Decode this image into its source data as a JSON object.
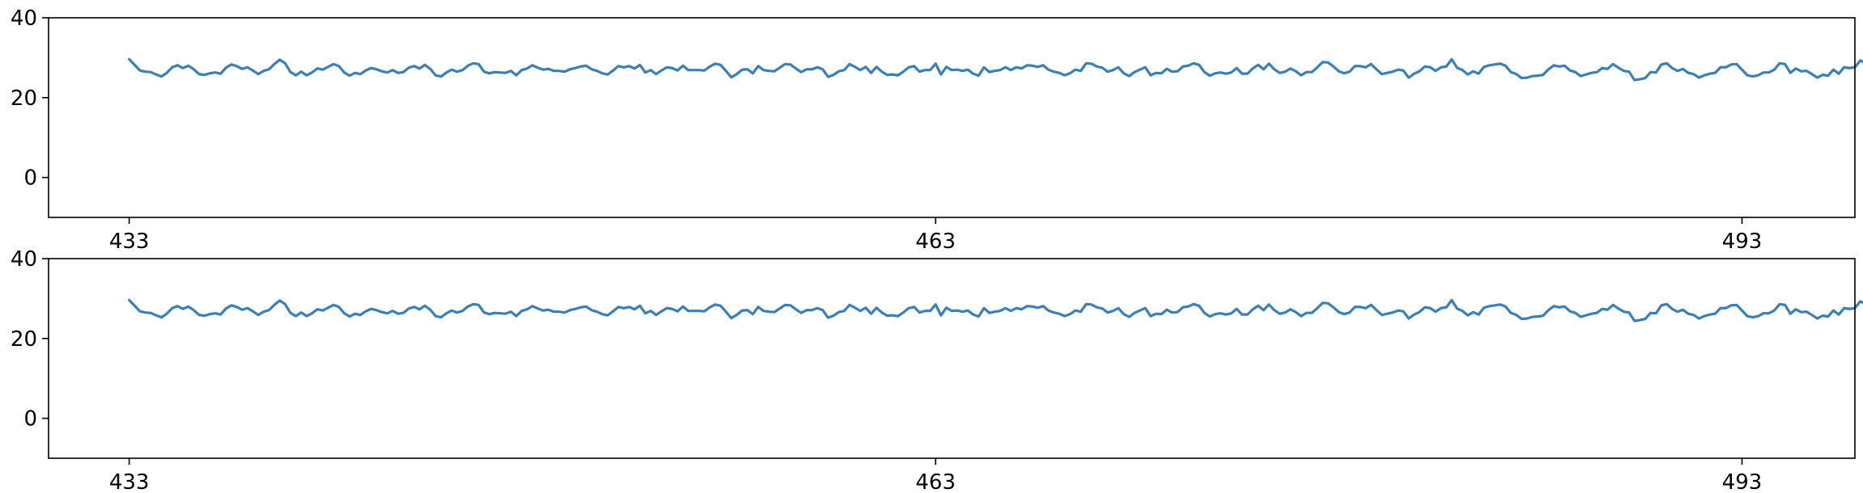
{
  "chart_data": [
    {
      "type": "line",
      "title": "",
      "xlabel": "",
      "ylabel": "",
      "xlim": [
        430,
        497.2
      ],
      "ylim": [
        -10,
        40
      ],
      "xticks": [
        433,
        463,
        493
      ],
      "xtick_labels": [
        "433",
        "463",
        "493"
      ],
      "yticks": [
        0,
        20,
        40
      ],
      "ytick_labels": [
        "0",
        "20",
        "40"
      ],
      "grid": false,
      "color": "#3a7fb5",
      "x_start": 433,
      "x_step": 0.2,
      "values": [
        29.6,
        28.2,
        26.8,
        26.5,
        26.4,
        25.8,
        25.3,
        26.2,
        27.6,
        28.1,
        27.4,
        28.0,
        27.1,
        25.9,
        25.7,
        26.1,
        26.3,
        26.0,
        27.5,
        28.3,
        27.9,
        27.2,
        27.6,
        26.8,
        25.9,
        26.7,
        27.1,
        28.4,
        29.5,
        28.6,
        26.4,
        25.6,
        26.5,
        25.6,
        26.3,
        27.3,
        27.0,
        27.7,
        28.4,
        27.9,
        26.3,
        25.5,
        26.2,
        25.9,
        26.8,
        27.4,
        27.1,
        26.6,
        26.3,
        26.9,
        26.2,
        26.4,
        27.5,
        27.9,
        27.3,
        28.2,
        27.2,
        25.6,
        25.3,
        26.3,
        27.0,
        26.5,
        26.9,
        28.0,
        28.6,
        28.4,
        26.5,
        26.1,
        26.4,
        26.3,
        26.2,
        26.7,
        25.6,
        26.9,
        27.3,
        28.1,
        27.5,
        27.0,
        27.2,
        26.7,
        26.7,
        26.5,
        27.1,
        27.4,
        27.8,
        28.0,
        27.1,
        26.7,
        26.1,
        25.8,
        26.8,
        27.9,
        27.6,
        27.9,
        27.3,
        28.2,
        26.3,
        26.9,
        25.9,
        26.8,
        27.6,
        27.4,
        26.8,
        28.0,
        26.9,
        26.9,
        26.9,
        26.8,
        27.8,
        28.5,
        28.2,
        26.7,
        25.1,
        25.9,
        27.0,
        27.1,
        26.1,
        27.9,
        26.9,
        26.7,
        26.6,
        27.5,
        28.4,
        28.3,
        27.3,
        26.4,
        27.1,
        27.1,
        27.6,
        27.1,
        25.2,
        25.7,
        26.6,
        26.9,
        28.4,
        27.7,
        26.9,
        27.7,
        26.2,
        27.7,
        26.5,
        25.7,
        25.8,
        25.6,
        26.5,
        27.6,
        27.9,
        26.5,
        26.9,
        26.9,
        28.5,
        25.8,
        27.7,
        26.9,
        27.0,
        26.7,
        27.0,
        26.0,
        25.5,
        27.6,
        26.4,
        26.7,
        26.9,
        27.6,
        26.9,
        27.6,
        27.3,
        28.1,
        28.0,
        27.7,
        28.1,
        27.0,
        26.5,
        26.2,
        25.6,
        26.1,
        27.0,
        26.7,
        28.6,
        28.5,
        27.8,
        27.5,
        26.5,
        26.9,
        27.6,
        26.1,
        25.4,
        26.4,
        27.0,
        27.6,
        25.6,
        26.2,
        26.1,
        27.2,
        26.5,
        26.6,
        27.8,
        28.0,
        28.6,
        28.2,
        26.4,
        25.5,
        26.1,
        26.3,
        26.0,
        26.3,
        27.4,
        26.0,
        26.0,
        27.3,
        28.2,
        27.1,
        28.5,
        27.1,
        26.2,
        26.5,
        27.3,
        26.6,
        25.6,
        26.4,
        26.4,
        27.6,
        28.9,
        28.8,
        27.8,
        26.6,
        26.1,
        26.5,
        27.9,
        27.9,
        27.6,
        28.4,
        27.1,
        25.9,
        26.2,
        26.5,
        27.0,
        26.8,
        25.0,
        26.0,
        26.6,
        27.8,
        27.6,
        26.7,
        27.6,
        27.8,
        29.6,
        27.5,
        26.9,
        25.8,
        26.6,
        26.0,
        27.7,
        28.1,
        28.3,
        28.5,
        28.0,
        26.4,
        25.9,
        24.9,
        25.0,
        25.4,
        25.5,
        25.7,
        27.1,
        28.1,
        27.8,
        28.0,
        26.8,
        26.4,
        25.4,
        25.8,
        26.2,
        26.4,
        27.4,
        27.2,
        28.4,
        27.5,
        26.7,
        26.5,
        24.4,
        24.6,
        24.9,
        26.4,
        26.3,
        28.3,
        28.6,
        27.4,
        26.7,
        27.2,
        26.2,
        25.9,
        25.0,
        25.6,
        26.0,
        26.2,
        27.6,
        27.6,
        28.3,
        28.4,
        27.0,
        25.6,
        25.3,
        25.6,
        26.3,
        26.3,
        27.0,
        28.6,
        28.4,
        26.2,
        27.3,
        26.6,
        26.7,
        25.9,
        25.0,
        25.7,
        25.5,
        27.0,
        26.0,
        27.6,
        27.4,
        27.6,
        29.3,
        28.6,
        27.1,
        26.7,
        26.0,
        25.6,
        27.2,
        26.9,
        27.4,
        27.5,
        27.9,
        28.1,
        26.7,
        25.4,
        26.6,
        27.0,
        25.0,
        25.6,
        26.7,
        27.0,
        27.6,
        28.0,
        26.3,
        28.3,
        27.1,
        28.3,
        27.8,
        27.5,
        27.0,
        26.0,
        26.0,
        25.8,
        25.1,
        26.6,
        27.1,
        28.7,
        28.5,
        28.1,
        26.5,
        26.1,
        26.8,
        25.8,
        25.4,
        25.7,
        25.9,
        27.1,
        27.5,
        28.4,
        28.4,
        27.5,
        26.6,
        26.3,
        26.9,
        27.0,
        25.8,
        26.1,
        26.7,
        27.9,
        27.9,
        27.3,
        26.2,
        26.8,
        26.4,
        27.0,
        26.5,
        26.1,
        25.1,
        26.0,
        26.4,
        28.0,
        28.7,
        27.3,
        28.3,
        26.6,
        26.1,
        26.4,
        25.0,
        25.2,
        25.7,
        27.0,
        27.3,
        27.6,
        27.7,
        28.2,
        26.9,
        25.1,
        27.4,
        28.1,
        26.6,
        27.9,
        26.0,
        25.6,
        26.5,
        26.6,
        28.0,
        27.2,
        27.2,
        26.6,
        27.1,
        24.8,
        24.9,
        25.2,
        27.3,
        27.8,
        28.0,
        28.9,
        27.2,
        26.2,
        25.7,
        26.0,
        26.0,
        24.2,
        25.0,
        25.9,
        26.6,
        28.4,
        27.4,
        27.4,
        27.9,
        25.8,
        25.5,
        25.7,
        26.4,
        26.7,
        28.7
      ]
    },
    {
      "type": "line",
      "title": "",
      "xlabel": "",
      "ylabel": "",
      "xlim": [
        430,
        497.2
      ],
      "ylim": [
        -10,
        40
      ],
      "xticks": [
        433,
        463,
        493
      ],
      "xtick_labels": [
        "433",
        "463",
        "493"
      ],
      "yticks": [
        0,
        20,
        40
      ],
      "ytick_labels": [
        "0",
        "20",
        "40"
      ],
      "grid": false,
      "color": "#3a7fb5",
      "x_start": 433,
      "x_step": 0.2,
      "values": [
        29.6,
        28.2,
        26.8,
        26.5,
        26.4,
        25.8,
        25.3,
        26.2,
        27.6,
        28.1,
        27.4,
        28.0,
        27.1,
        25.9,
        25.7,
        26.1,
        26.3,
        26.0,
        27.5,
        28.3,
        27.9,
        27.2,
        27.6,
        26.8,
        25.9,
        26.7,
        27.1,
        28.4,
        29.5,
        28.6,
        26.4,
        25.6,
        26.5,
        25.6,
        26.3,
        27.3,
        27.0,
        27.7,
        28.4,
        27.9,
        26.3,
        25.5,
        26.2,
        25.9,
        26.8,
        27.4,
        27.1,
        26.6,
        26.3,
        26.9,
        26.2,
        26.4,
        27.5,
        27.9,
        27.3,
        28.2,
        27.2,
        25.6,
        25.3,
        26.3,
        27.0,
        26.5,
        26.9,
        28.0,
        28.6,
        28.4,
        26.5,
        26.1,
        26.4,
        26.3,
        26.2,
        26.7,
        25.6,
        26.9,
        27.3,
        28.1,
        27.5,
        27.0,
        27.2,
        26.7,
        26.7,
        26.5,
        27.1,
        27.4,
        27.8,
        28.0,
        27.1,
        26.7,
        26.1,
        25.8,
        26.8,
        27.9,
        27.6,
        27.9,
        27.3,
        28.2,
        26.3,
        26.9,
        25.9,
        26.8,
        27.6,
        27.4,
        26.8,
        28.0,
        26.9,
        26.9,
        26.9,
        26.8,
        27.8,
        28.5,
        28.2,
        26.7,
        25.1,
        25.9,
        27.0,
        27.1,
        26.1,
        27.9,
        26.9,
        26.7,
        26.6,
        27.5,
        28.4,
        28.3,
        27.3,
        26.4,
        27.1,
        27.1,
        27.6,
        27.1,
        25.2,
        25.7,
        26.6,
        26.9,
        28.4,
        27.7,
        26.9,
        27.7,
        26.2,
        27.7,
        26.5,
        25.7,
        25.8,
        25.6,
        26.5,
        27.6,
        27.9,
        26.5,
        26.9,
        26.9,
        28.5,
        25.8,
        27.7,
        26.9,
        27.0,
        26.7,
        27.0,
        26.0,
        25.5,
        27.6,
        26.4,
        26.7,
        26.9,
        27.6,
        26.9,
        27.6,
        27.3,
        28.1,
        28.0,
        27.7,
        28.1,
        27.0,
        26.5,
        26.2,
        25.6,
        26.1,
        27.0,
        26.7,
        28.6,
        28.5,
        27.8,
        27.5,
        26.5,
        26.9,
        27.6,
        26.1,
        25.4,
        26.4,
        27.0,
        27.6,
        25.6,
        26.2,
        26.1,
        27.2,
        26.5,
        26.6,
        27.8,
        28.0,
        28.6,
        28.2,
        26.4,
        25.5,
        26.1,
        26.3,
        26.0,
        26.3,
        27.4,
        26.0,
        26.0,
        27.3,
        28.2,
        27.1,
        28.5,
        27.1,
        26.2,
        26.5,
        27.3,
        26.6,
        25.6,
        26.4,
        26.4,
        27.6,
        28.9,
        28.8,
        27.8,
        26.6,
        26.1,
        26.5,
        27.9,
        27.9,
        27.6,
        28.4,
        27.1,
        25.9,
        26.2,
        26.5,
        27.0,
        26.8,
        25.0,
        26.0,
        26.6,
        27.8,
        27.6,
        26.7,
        27.6,
        27.8,
        29.6,
        27.5,
        26.9,
        25.8,
        26.6,
        26.0,
        27.7,
        28.1,
        28.3,
        28.5,
        28.0,
        26.4,
        25.9,
        24.9,
        25.0,
        25.4,
        25.5,
        25.7,
        27.1,
        28.1,
        27.8,
        28.0,
        26.8,
        26.4,
        25.4,
        25.8,
        26.2,
        26.4,
        27.4,
        27.2,
        28.4,
        27.5,
        26.7,
        26.5,
        24.4,
        24.6,
        24.9,
        26.4,
        26.3,
        28.3,
        28.6,
        27.4,
        26.7,
        27.2,
        26.2,
        25.9,
        25.0,
        25.6,
        26.0,
        26.2,
        27.6,
        27.6,
        28.3,
        28.4,
        27.0,
        25.6,
        25.3,
        25.6,
        26.3,
        26.3,
        27.0,
        28.6,
        28.4,
        26.2,
        27.3,
        26.6,
        26.7,
        25.9,
        25.0,
        25.7,
        25.5,
        27.0,
        26.0,
        27.6,
        27.4,
        27.6,
        29.3,
        28.6,
        27.1,
        26.7,
        26.0,
        25.6,
        27.2,
        26.9,
        27.4,
        27.5,
        27.9,
        28.1,
        26.7,
        25.4,
        26.6,
        27.0,
        25.0,
        25.6,
        26.7,
        27.0,
        27.6,
        28.0,
        26.3,
        28.3,
        27.1,
        28.3,
        27.8,
        27.5,
        27.0,
        26.0,
        26.0,
        25.8,
        25.1,
        26.6,
        27.1,
        28.7,
        28.5,
        28.1,
        26.5,
        26.1,
        26.8,
        25.8,
        25.4,
        25.7,
        25.9,
        27.1,
        27.5,
        28.4,
        28.4,
        27.5,
        26.6,
        26.3,
        26.9,
        27.0,
        25.8,
        26.1,
        26.7,
        27.9,
        27.9,
        27.3,
        26.2,
        26.8,
        26.4,
        27.0,
        26.5,
        26.1,
        25.1,
        26.0,
        26.4,
        28.0,
        28.7,
        27.3,
        28.3,
        26.6,
        26.1,
        26.4,
        25.0,
        25.2,
        25.7,
        27.0,
        27.3,
        27.6,
        27.7,
        28.2,
        26.9,
        25.1,
        27.4,
        28.1,
        26.6,
        27.9,
        26.0,
        25.6,
        26.5,
        26.6,
        28.0,
        27.2,
        27.2,
        26.6,
        27.1,
        24.8,
        24.9,
        25.2,
        27.3,
        27.8,
        28.0,
        28.9,
        27.2,
        26.2,
        25.7,
        26.0,
        26.0,
        24.2,
        25.0,
        25.9,
        26.6,
        28.4,
        27.4,
        27.4,
        27.9,
        25.8,
        25.5,
        25.7,
        26.4,
        26.7,
        28.7
      ]
    }
  ]
}
